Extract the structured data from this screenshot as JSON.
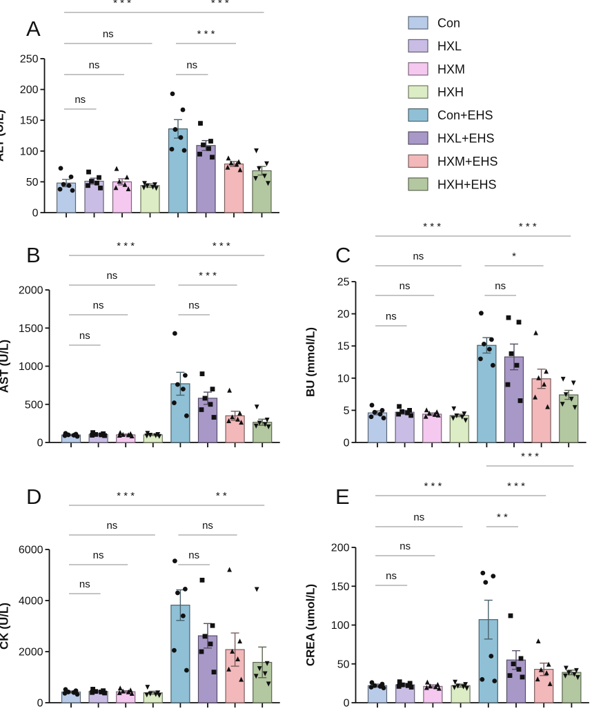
{
  "figure": {
    "width": 858,
    "height": 1030
  },
  "legend": {
    "items": [
      {
        "label": "Con",
        "color": "#b8cbe8",
        "marker": "circle"
      },
      {
        "label": "HXL",
        "color": "#c9bde5",
        "marker": "square"
      },
      {
        "label": "HXM",
        "color": "#f5c8f0",
        "marker": "triangle-up"
      },
      {
        "label": "HXH",
        "color": "#dcecc4",
        "marker": "triangle-down"
      },
      {
        "label": "Con+EHS",
        "color": "#8fc0d6",
        "marker": "circle"
      },
      {
        "label": "HXL+EHS",
        "color": "#a898c8",
        "marker": "square"
      },
      {
        "label": "HXM+EHS",
        "color": "#f2b8ba",
        "marker": "triangle-up"
      },
      {
        "label": "HXH+EHS",
        "color": "#b3c8a0",
        "marker": "triangle-down"
      }
    ]
  },
  "chart_data": [
    {
      "panel": "A",
      "type": "bar",
      "ylabel": "ALT (U/L)",
      "ylim": [
        0,
        250
      ],
      "yticks": [
        0,
        50,
        100,
        150,
        200,
        250
      ],
      "ytick_labels": [
        "0",
        "50",
        "100",
        "150",
        "200",
        "250"
      ],
      "categories": [
        "Con",
        "HXL",
        "HXM",
        "HXH",
        "Con+EHS",
        "HXL+EHS",
        "HXM+EHS",
        "HXH+EHS"
      ],
      "values": [
        48,
        51,
        50,
        44,
        136,
        109,
        79,
        68
      ],
      "sem": [
        6,
        5,
        5,
        3,
        15,
        8,
        4,
        7
      ],
      "points": [
        [
          72,
          58,
          46,
          44,
          38,
          36
        ],
        [
          66,
          57,
          51,
          48,
          44,
          40
        ],
        [
          71,
          57,
          50,
          45,
          40,
          38
        ],
        [
          48,
          46,
          44,
          42,
          41,
          40
        ],
        [
          193,
          167,
          135,
          122,
          103,
          101
        ],
        [
          145,
          116,
          110,
          104,
          95,
          90
        ],
        [
          88,
          82,
          80,
          78,
          73,
          69
        ],
        [
          101,
          80,
          72,
          60,
          56,
          48
        ]
      ],
      "significance": [
        {
          "from": 0,
          "to": 1,
          "label": "ns"
        },
        {
          "from": 0,
          "to": 2,
          "label": "ns"
        },
        {
          "from": 0,
          "to": 3,
          "label": "ns"
        },
        {
          "from": 0,
          "to": 4,
          "label": "* * *"
        },
        {
          "from": 4,
          "to": 5,
          "label": "ns"
        },
        {
          "from": 4,
          "to": 6,
          "label": "* * *"
        },
        {
          "from": 4,
          "to": 7,
          "label": "* * *"
        }
      ]
    },
    {
      "panel": "B",
      "type": "bar",
      "ylabel": "AST (U/L)",
      "ylim": [
        0,
        2000
      ],
      "yticks": [
        0,
        500,
        1000,
        1500,
        2000
      ],
      "ytick_labels": [
        "0",
        "500",
        "1000",
        "1500",
        "2000"
      ],
      "categories": [
        "Con",
        "HXL",
        "HXM",
        "HXH",
        "Con+EHS",
        "HXL+EHS",
        "HXM+EHS",
        "HXH+EHS"
      ],
      "values": [
        98,
        105,
        100,
        100,
        770,
        580,
        350,
        265
      ],
      "sem": [
        10,
        12,
        10,
        10,
        150,
        80,
        60,
        40
      ],
      "points": [
        [
          120,
          110,
          100,
          95,
          90,
          80
        ],
        [
          130,
          115,
          105,
          100,
          95,
          90
        ],
        [
          125,
          110,
          100,
          95,
          90,
          80
        ],
        [
          125,
          110,
          100,
          95,
          90,
          85
        ],
        [
          1430,
          880,
          760,
          700,
          520,
          350
        ],
        [
          900,
          700,
          580,
          500,
          430,
          330
        ],
        [
          680,
          380,
          330,
          300,
          280,
          260
        ],
        [
          470,
          300,
          260,
          240,
          220,
          210
        ]
      ],
      "significance": [
        {
          "from": 0,
          "to": 1,
          "label": "ns"
        },
        {
          "from": 0,
          "to": 2,
          "label": "ns"
        },
        {
          "from": 0,
          "to": 3,
          "label": "ns"
        },
        {
          "from": 0,
          "to": 4,
          "label": "* * *"
        },
        {
          "from": 4,
          "to": 5,
          "label": "ns"
        },
        {
          "from": 4,
          "to": 6,
          "label": "* * *"
        },
        {
          "from": 4,
          "to": 7,
          "label": "* * *"
        }
      ]
    },
    {
      "panel": "C",
      "type": "bar",
      "ylabel": "BU (mmol/L)",
      "ylim": [
        0,
        25
      ],
      "yticks": [
        0,
        5,
        10,
        15,
        20,
        25
      ],
      "ytick_labels": [
        "0",
        "5",
        "10",
        "15",
        "20",
        "25"
      ],
      "categories": [
        "Con",
        "HXL",
        "HXM",
        "HXH",
        "Con+EHS",
        "HXL+EHS",
        "HXM+EHS",
        "HXH+EHS"
      ],
      "values": [
        4.6,
        4.7,
        4.4,
        4.2,
        15.1,
        13.3,
        9.9,
        7.4
      ],
      "sem": [
        0.3,
        0.3,
        0.2,
        0.2,
        1.2,
        2.0,
        1.5,
        0.7
      ],
      "points": [
        [
          5.8,
          5.0,
          4.7,
          4.4,
          4.0,
          3.8
        ],
        [
          5.6,
          5.0,
          4.8,
          4.6,
          4.4,
          4.2
        ],
        [
          5.0,
          4.7,
          4.5,
          4.3,
          4.0,
          4.2
        ],
        [
          5.3,
          4.5,
          4.2,
          4.0,
          3.8,
          3.5
        ],
        [
          20.1,
          16.0,
          15.3,
          14.5,
          13.0,
          12.0
        ],
        [
          19.4,
          18.7,
          13.8,
          12.0,
          9.0,
          6.5
        ],
        [
          17.0,
          11.0,
          10.0,
          9.0,
          7.0,
          5.5
        ],
        [
          9.9,
          9.3,
          7.5,
          6.8,
          6.0,
          5.5
        ]
      ],
      "significance": [
        {
          "from": 0,
          "to": 1,
          "label": "ns"
        },
        {
          "from": 0,
          "to": 2,
          "label": "ns"
        },
        {
          "from": 0,
          "to": 3,
          "label": "ns"
        },
        {
          "from": 0,
          "to": 4,
          "label": "* * *"
        },
        {
          "from": 4,
          "to": 5,
          "label": "ns"
        },
        {
          "from": 4,
          "to": 6,
          "label": "*"
        },
        {
          "from": 4,
          "to": 7,
          "label": "* * *"
        }
      ]
    },
    {
      "panel": "D",
      "type": "bar",
      "ylabel": "CK (U/L)",
      "ylim": [
        0,
        6000
      ],
      "yticks": [
        0,
        2000,
        4000,
        6000
      ],
      "ytick_labels": [
        "0",
        "2000",
        "4000",
        "6000"
      ],
      "categories": [
        "Con",
        "HXL",
        "HXM",
        "HXH",
        "Con+EHS",
        "HXL+EHS",
        "HXM+EHS",
        "HXH+EHS"
      ],
      "values": [
        420,
        440,
        430,
        390,
        3820,
        2620,
        2080,
        1580
      ],
      "sem": [
        40,
        40,
        40,
        60,
        600,
        480,
        650,
        600
      ],
      "points": [
        [
          520,
          470,
          420,
          400,
          370,
          330
        ],
        [
          530,
          470,
          440,
          420,
          400,
          380
        ],
        [
          560,
          480,
          440,
          410,
          380,
          350
        ],
        [
          620,
          400,
          360,
          340,
          320,
          300
        ],
        [
          5550,
          4450,
          4300,
          3400,
          2050,
          1270
        ],
        [
          4800,
          3020,
          2600,
          2300,
          2000,
          1200
        ],
        [
          5200,
          2400,
          2000,
          1700,
          1300,
          900
        ],
        [
          4450,
          1550,
          1350,
          1150,
          1050,
          750
        ]
      ],
      "significance": [
        {
          "from": 0,
          "to": 1,
          "label": "ns"
        },
        {
          "from": 0,
          "to": 2,
          "label": "ns"
        },
        {
          "from": 0,
          "to": 3,
          "label": "ns"
        },
        {
          "from": 0,
          "to": 4,
          "label": "* * *"
        },
        {
          "from": 4,
          "to": 5,
          "label": "ns"
        },
        {
          "from": 4,
          "to": 6,
          "label": "ns"
        },
        {
          "from": 4,
          "to": 7,
          "label": "* *"
        }
      ]
    },
    {
      "panel": "E",
      "type": "bar",
      "ylabel": "CREA (umol/L)",
      "ylim": [
        0,
        200
      ],
      "yticks": [
        0,
        50,
        100,
        150,
        200
      ],
      "ytick_labels": [
        "0",
        "50",
        "100",
        "150",
        "200"
      ],
      "categories": [
        "Con",
        "HXL",
        "HXM",
        "HXH",
        "Con+EHS",
        "HXL+EHS",
        "HXM+EHS",
        "HXH+EHS"
      ],
      "values": [
        22,
        23,
        21,
        22,
        107,
        55,
        43,
        39
      ],
      "sem": [
        2,
        2,
        2,
        2,
        25,
        12,
        8,
        3
      ],
      "points": [
        [
          26,
          24,
          22,
          21,
          20,
          19
        ],
        [
          27,
          25,
          23,
          22,
          21,
          20
        ],
        [
          26,
          23,
          21,
          20,
          19,
          18
        ],
        [
          27,
          24,
          22,
          21,
          20,
          19
        ],
        [
          167,
          163,
          155,
          60,
          30,
          28
        ],
        [
          112,
          57,
          50,
          43,
          35,
          33
        ],
        [
          79,
          49,
          42,
          38,
          30,
          24
        ],
        [
          45,
          42,
          39,
          37,
          35,
          33
        ]
      ],
      "significance": [
        {
          "from": 0,
          "to": 1,
          "label": "ns"
        },
        {
          "from": 0,
          "to": 2,
          "label": "ns"
        },
        {
          "from": 0,
          "to": 3,
          "label": "ns"
        },
        {
          "from": 0,
          "to": 4,
          "label": "* * *"
        },
        {
          "from": 4,
          "to": 5,
          "label": "* *"
        },
        {
          "from": 4,
          "to": 6,
          "label": "* * *"
        },
        {
          "from": 4,
          "to": 7,
          "label": "* * *"
        }
      ]
    }
  ]
}
